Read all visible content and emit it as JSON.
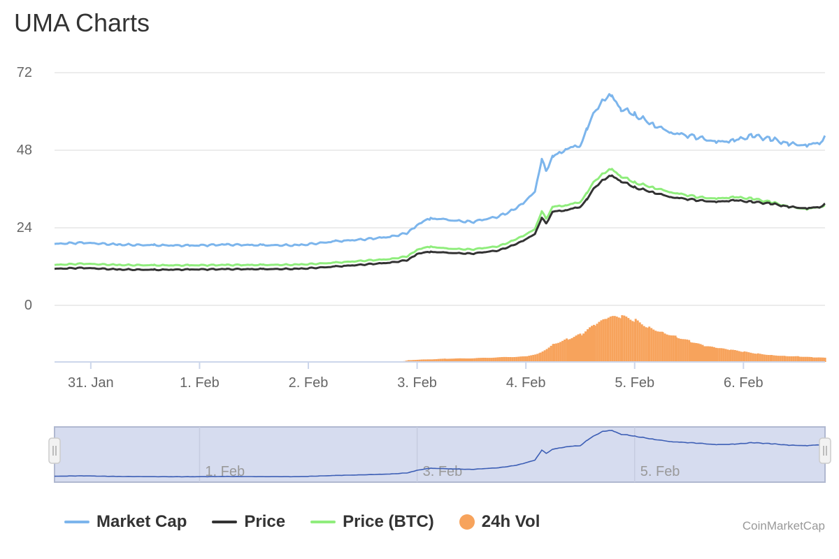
{
  "page": {
    "title": "UMA Charts",
    "credit": "CoinMarketCap"
  },
  "colors": {
    "market_cap": "#7cb5ec",
    "price": "#333333",
    "price_btc": "#90ed7d",
    "volume": "#f7a35c",
    "navigator_fill": "#d6dcef",
    "navigator_line": "#3c5eb5"
  },
  "chart_data": {
    "type": "line",
    "title": "UMA Charts",
    "ylim": [
      0,
      72
    ],
    "y_ticks": [
      "72",
      "48",
      "24",
      "0"
    ],
    "y_tick_values": [
      72,
      48,
      24,
      0
    ],
    "x_range": [
      "2021-01-30T16:00",
      "2021-02-06T18:00"
    ],
    "x_ticks": [
      "31. Jan",
      "1. Feb",
      "2. Feb",
      "3. Feb",
      "4. Feb",
      "5. Feb",
      "6. Feb"
    ],
    "x_tick_dates": [
      "2021-01-31",
      "2021-02-01",
      "2021-02-02",
      "2021-02-03",
      "2021-02-04",
      "2021-02-05",
      "2021-02-06"
    ],
    "grid": true,
    "legend_position": "bottom-left",
    "series": [
      {
        "name": "Market Cap",
        "points": [
          [
            "2021-01-30T16:00",
            19.0
          ],
          [
            "2021-01-30T22:00",
            19.4
          ],
          [
            "2021-01-31T06:00",
            18.8
          ],
          [
            "2021-01-31T14:00",
            18.6
          ],
          [
            "2021-01-31T22:00",
            18.5
          ],
          [
            "2021-02-01T06:00",
            18.8
          ],
          [
            "2021-02-01T14:00",
            18.6
          ],
          [
            "2021-02-01T22:00",
            18.6
          ],
          [
            "2021-02-02T06:00",
            19.8
          ],
          [
            "2021-02-02T12:00",
            20.4
          ],
          [
            "2021-02-02T18:00",
            21.2
          ],
          [
            "2021-02-02T22:00",
            22.4
          ],
          [
            "2021-02-03T00:00",
            25.0
          ],
          [
            "2021-02-03T03:00",
            27.0
          ],
          [
            "2021-02-03T06:00",
            26.5
          ],
          [
            "2021-02-03T12:00",
            25.8
          ],
          [
            "2021-02-03T18:00",
            27.5
          ],
          [
            "2021-02-03T22:00",
            30.0
          ],
          [
            "2021-02-04T02:00",
            35.0
          ],
          [
            "2021-02-04T03:30",
            45.0
          ],
          [
            "2021-02-04T04:30",
            42.0
          ],
          [
            "2021-02-04T06:00",
            46.0
          ],
          [
            "2021-02-04T09:00",
            48.5
          ],
          [
            "2021-02-04T12:00",
            49.5
          ],
          [
            "2021-02-04T13:30",
            55.0
          ],
          [
            "2021-02-04T15:00",
            59.0
          ],
          [
            "2021-02-04T17:00",
            64.0
          ],
          [
            "2021-02-04T19:00",
            64.5
          ],
          [
            "2021-02-04T21:00",
            61.0
          ],
          [
            "2021-02-05T00:00",
            59.0
          ],
          [
            "2021-02-05T04:00",
            56.0
          ],
          [
            "2021-02-05T08:00",
            53.5
          ],
          [
            "2021-02-05T14:00",
            52.0
          ],
          [
            "2021-02-05T18:00",
            50.5
          ],
          [
            "2021-02-05T22:00",
            51.0
          ],
          [
            "2021-02-06T02:00",
            52.5
          ],
          [
            "2021-02-06T06:00",
            51.5
          ],
          [
            "2021-02-06T10:00",
            50.0
          ],
          [
            "2021-02-06T14:00",
            49.5
          ],
          [
            "2021-02-06T17:00",
            50.5
          ],
          [
            "2021-02-06T18:00",
            52.5
          ]
        ]
      },
      {
        "name": "Price",
        "points": [
          [
            "2021-01-30T16:00",
            11.3
          ],
          [
            "2021-01-30T22:00",
            11.6
          ],
          [
            "2021-01-31T06:00",
            11.1
          ],
          [
            "2021-01-31T14:00",
            11.0
          ],
          [
            "2021-01-31T22:00",
            11.1
          ],
          [
            "2021-02-01T06:00",
            11.2
          ],
          [
            "2021-02-01T14:00",
            11.2
          ],
          [
            "2021-02-01T22:00",
            11.3
          ],
          [
            "2021-02-02T06:00",
            12.0
          ],
          [
            "2021-02-02T12:00",
            12.6
          ],
          [
            "2021-02-02T18:00",
            13.2
          ],
          [
            "2021-02-02T22:00",
            14.0
          ],
          [
            "2021-02-03T00:00",
            16.0
          ],
          [
            "2021-02-03T03:00",
            16.6
          ],
          [
            "2021-02-03T06:00",
            16.3
          ],
          [
            "2021-02-03T12:00",
            16.0
          ],
          [
            "2021-02-03T18:00",
            17.0
          ],
          [
            "2021-02-03T22:00",
            19.0
          ],
          [
            "2021-02-04T02:00",
            22.0
          ],
          [
            "2021-02-04T03:30",
            27.0
          ],
          [
            "2021-02-04T04:30",
            25.5
          ],
          [
            "2021-02-04T06:00",
            29.0
          ],
          [
            "2021-02-04T09:00",
            29.5
          ],
          [
            "2021-02-04T12:00",
            30.5
          ],
          [
            "2021-02-04T13:30",
            33.0
          ],
          [
            "2021-02-04T15:00",
            36.0
          ],
          [
            "2021-02-04T17:00",
            39.0
          ],
          [
            "2021-02-04T19:00",
            40.0
          ],
          [
            "2021-02-04T21:00",
            38.5
          ],
          [
            "2021-02-05T00:00",
            36.5
          ],
          [
            "2021-02-05T04:00",
            35.0
          ],
          [
            "2021-02-05T08:00",
            33.5
          ],
          [
            "2021-02-05T14:00",
            32.5
          ],
          [
            "2021-02-05T18:00",
            32.0
          ],
          [
            "2021-02-05T22:00",
            32.5
          ],
          [
            "2021-02-06T02:00",
            32.0
          ],
          [
            "2021-02-06T06:00",
            31.5
          ],
          [
            "2021-02-06T10:00",
            30.5
          ],
          [
            "2021-02-06T14:00",
            30.0
          ],
          [
            "2021-02-06T17:00",
            30.5
          ],
          [
            "2021-02-06T18:00",
            31.5
          ]
        ]
      },
      {
        "name": "Price (BTC)",
        "points": [
          [
            "2021-01-30T16:00",
            12.5
          ],
          [
            "2021-01-30T22:00",
            12.9
          ],
          [
            "2021-01-31T06:00",
            12.5
          ],
          [
            "2021-01-31T14:00",
            12.4
          ],
          [
            "2021-01-31T22:00",
            12.4
          ],
          [
            "2021-02-01T06:00",
            12.5
          ],
          [
            "2021-02-01T14:00",
            12.5
          ],
          [
            "2021-02-01T22:00",
            12.6
          ],
          [
            "2021-02-02T06:00",
            13.2
          ],
          [
            "2021-02-02T12:00",
            13.8
          ],
          [
            "2021-02-02T18:00",
            14.3
          ],
          [
            "2021-02-02T22:00",
            15.2
          ],
          [
            "2021-02-03T00:00",
            17.3
          ],
          [
            "2021-02-03T03:00",
            18.2
          ],
          [
            "2021-02-03T06:00",
            17.6
          ],
          [
            "2021-02-03T12:00",
            17.3
          ],
          [
            "2021-02-03T18:00",
            18.3
          ],
          [
            "2021-02-03T22:00",
            20.5
          ],
          [
            "2021-02-04T02:00",
            23.5
          ],
          [
            "2021-02-04T03:30",
            29.0
          ],
          [
            "2021-02-04T04:30",
            27.0
          ],
          [
            "2021-02-04T06:00",
            30.5
          ],
          [
            "2021-02-04T09:00",
            31.0
          ],
          [
            "2021-02-04T12:00",
            32.0
          ],
          [
            "2021-02-04T13:30",
            35.0
          ],
          [
            "2021-02-04T15:00",
            38.0
          ],
          [
            "2021-02-04T17:00",
            41.0
          ],
          [
            "2021-02-04T19:00",
            42.0
          ],
          [
            "2021-02-04T21:00",
            40.0
          ],
          [
            "2021-02-05T00:00",
            38.0
          ],
          [
            "2021-02-05T04:00",
            36.5
          ],
          [
            "2021-02-05T08:00",
            35.0
          ],
          [
            "2021-02-05T14:00",
            33.5
          ],
          [
            "2021-02-05T18:00",
            33.0
          ],
          [
            "2021-02-05T22:00",
            33.5
          ],
          [
            "2021-02-06T02:00",
            33.0
          ],
          [
            "2021-02-06T06:00",
            32.0
          ],
          [
            "2021-02-06T10:00",
            30.5
          ],
          [
            "2021-02-06T14:00",
            29.8
          ],
          [
            "2021-02-06T17:00",
            30.5
          ],
          [
            "2021-02-06T18:00",
            31.0
          ]
        ]
      },
      {
        "name": "24h Vol",
        "type": "column",
        "relative_height": true,
        "points": [
          [
            "2021-01-30T16:00",
            0.0
          ],
          [
            "2021-02-02T20:00",
            0.0
          ],
          [
            "2021-02-02T22:00",
            0.04
          ],
          [
            "2021-02-03T06:00",
            0.07
          ],
          [
            "2021-02-03T12:00",
            0.08
          ],
          [
            "2021-02-03T18:00",
            0.1
          ],
          [
            "2021-02-04T00:00",
            0.12
          ],
          [
            "2021-02-04T03:00",
            0.2
          ],
          [
            "2021-02-04T06:00",
            0.4
          ],
          [
            "2021-02-04T09:00",
            0.5
          ],
          [
            "2021-02-04T12:00",
            0.6
          ],
          [
            "2021-02-04T15:00",
            0.8
          ],
          [
            "2021-02-04T18:00",
            0.95
          ],
          [
            "2021-02-04T21:00",
            0.98
          ],
          [
            "2021-02-05T00:00",
            0.9
          ],
          [
            "2021-02-05T03:00",
            0.75
          ],
          [
            "2021-02-05T06:00",
            0.65
          ],
          [
            "2021-02-05T09:00",
            0.55
          ],
          [
            "2021-02-05T12:00",
            0.45
          ],
          [
            "2021-02-05T15:00",
            0.35
          ],
          [
            "2021-02-05T18:00",
            0.3
          ],
          [
            "2021-02-05T21:00",
            0.26
          ],
          [
            "2021-02-06T00:00",
            0.22
          ],
          [
            "2021-02-06T03:00",
            0.18
          ],
          [
            "2021-02-06T06:00",
            0.15
          ],
          [
            "2021-02-06T09:00",
            0.13
          ],
          [
            "2021-02-06T12:00",
            0.12
          ],
          [
            "2021-02-06T15:00",
            0.1
          ],
          [
            "2021-02-06T18:00",
            0.09
          ]
        ]
      }
    ],
    "navigator": {
      "x_ticks": [
        "1. Feb",
        "3. Feb",
        "5. Feb"
      ],
      "x_tick_dates": [
        "2021-02-01",
        "2021-02-03",
        "2021-02-05"
      ]
    }
  },
  "legend": [
    {
      "label": "Market Cap",
      "kind": "line",
      "color": "#7cb5ec"
    },
    {
      "label": "Price",
      "kind": "line",
      "color": "#333333"
    },
    {
      "label": "Price (BTC)",
      "kind": "line",
      "color": "#90ed7d"
    },
    {
      "label": "24h Vol",
      "kind": "dot",
      "color": "#f7a35c"
    }
  ]
}
